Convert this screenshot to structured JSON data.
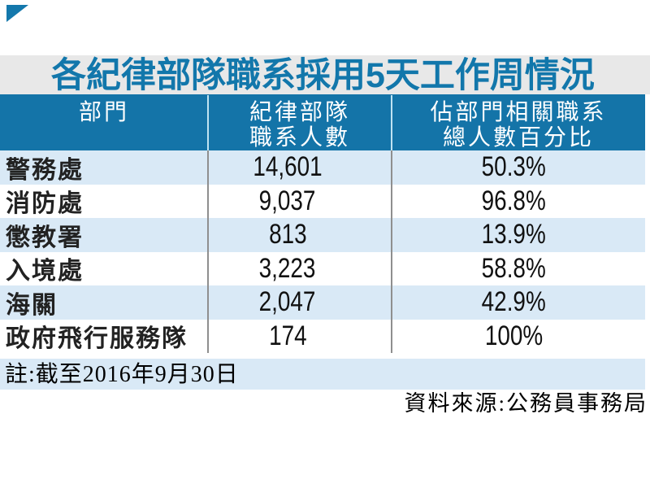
{
  "title": "各紀律部隊職系採用5天工作周情況",
  "table": {
    "columns": [
      {
        "lines": [
          "部門",
          ""
        ]
      },
      {
        "lines": [
          "紀律部隊",
          "職系人數"
        ]
      },
      {
        "lines": [
          "佔部門相關職系",
          "總人數百分比"
        ]
      }
    ],
    "rows": [
      {
        "dept": "警務處",
        "count": "14,601",
        "percent": "50.3%"
      },
      {
        "dept": "消防處",
        "count": "9,037",
        "percent": "96.8%"
      },
      {
        "dept": "懲教署",
        "count": "813",
        "percent": "13.9%"
      },
      {
        "dept": "入境處",
        "count": "3,223",
        "percent": "58.8%"
      },
      {
        "dept": "海關",
        "count": "2,047",
        "percent": "42.9%"
      },
      {
        "dept": "政府飛行服務隊",
        "count": "174",
        "percent": "100%"
      }
    ],
    "note": "註:截至2016年9月30日",
    "source": "資料來源:公務員事務局"
  },
  "icons": {
    "corner_triangle": "corner-triangle-mark"
  },
  "colors": {
    "accent_blue": "#1474a8",
    "title_blue": "#1277ab",
    "stripe_blue": "#d9e9f6",
    "band_gray": "#e8e8e8",
    "separator_gray": "#8f8f8f",
    "separator_light": "#bfe3f2",
    "text_dark": "#222222"
  },
  "chart_data": {
    "type": "table",
    "title": "各紀律部隊職系採用5天工作周情況",
    "columns": [
      "部門",
      "紀律部隊職系人數",
      "佔部門相關職系總人數百分比"
    ],
    "rows": [
      [
        "警務處",
        14601,
        "50.3%"
      ],
      [
        "消防處",
        9037,
        "96.8%"
      ],
      [
        "懲教署",
        813,
        "13.9%"
      ],
      [
        "入境處",
        3223,
        "58.8%"
      ],
      [
        "海關",
        2047,
        "42.9%"
      ],
      [
        "政府飛行服務隊",
        174,
        "100%"
      ]
    ],
    "note": "註:截至2016年9月30日",
    "source": "資料來源:公務員事務局",
    "layout": {
      "striped": true,
      "stripe_color": "#d9e9f6",
      "header_bg": "#1474a8",
      "header_text": "#ffffff"
    }
  }
}
